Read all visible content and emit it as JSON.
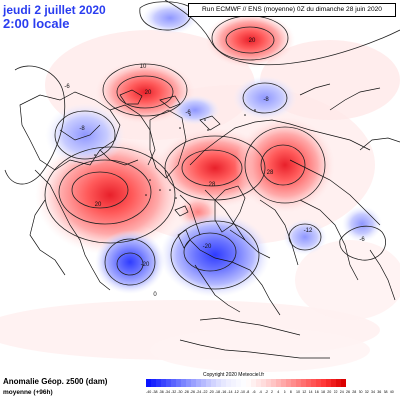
{
  "header": {
    "date": "jeudi 2 juillet 2020",
    "time": "2:00 locale",
    "run_info": "Run ECMWF // ENS (moyenne) 0Z du dimanche 28 juin 2020"
  },
  "footer": {
    "title": "Anomalie Géop. z500 (dam)",
    "subtitle": "moyenne   (+96h)",
    "copyright": "Copyright 2020 Meteociel.fr"
  },
  "legend": {
    "values": [
      "-40",
      "-38",
      "-36",
      "-34",
      "-32",
      "-30",
      "-28",
      "-26",
      "-24",
      "-22",
      "-20",
      "-18",
      "-16",
      "-14",
      "-12",
      "-10",
      "-8",
      "-6",
      "-4",
      "-2",
      "2",
      "4",
      "6",
      "8",
      "10",
      "12",
      "14",
      "16",
      "18",
      "20",
      "22",
      "24",
      "26",
      "28",
      "30",
      "32",
      "34",
      "36",
      "38",
      "40"
    ],
    "colors": [
      "#0a14ff",
      "#1a24ff",
      "#2a34ff",
      "#3a44ff",
      "#4a54ff",
      "#5a64ff",
      "#6a74ff",
      "#7a84ff",
      "#8a92ff",
      "#9aa0ff",
      "#a9aeff",
      "#b6baff",
      "#c4c7ff",
      "#d1d3ff",
      "#dcdeff",
      "#e6e7ff",
      "#eeeeff",
      "#f3f3ff",
      "#f8f8ff",
      "#fcfcff",
      "#fffafa",
      "#fff0f0",
      "#ffe6e6",
      "#ffdcdc",
      "#ffd0d0",
      "#ffc4c4",
      "#ffb6b6",
      "#ffa8a8",
      "#ff9a9a",
      "#ff8c8c",
      "#ff7e7e",
      "#ff7070",
      "#ff6262",
      "#ff5454",
      "#ff4646",
      "#ff3838",
      "#f82a2a",
      "#ee1c1c",
      "#e40e0e",
      "#da0000"
    ]
  },
  "anomaly_labels": [
    {
      "text": "-6"
    },
    {
      "text": "10"
    },
    {
      "text": "20"
    },
    {
      "text": "-8"
    },
    {
      "text": "-8"
    },
    {
      "text": "-6"
    },
    {
      "text": "20"
    },
    {
      "text": "28"
    },
    {
      "text": "28"
    },
    {
      "text": "20"
    },
    {
      "text": "-20"
    },
    {
      "text": "-20"
    },
    {
      "text": "-12"
    },
    {
      "text": "-6"
    },
    {
      "text": "0"
    }
  ]
}
